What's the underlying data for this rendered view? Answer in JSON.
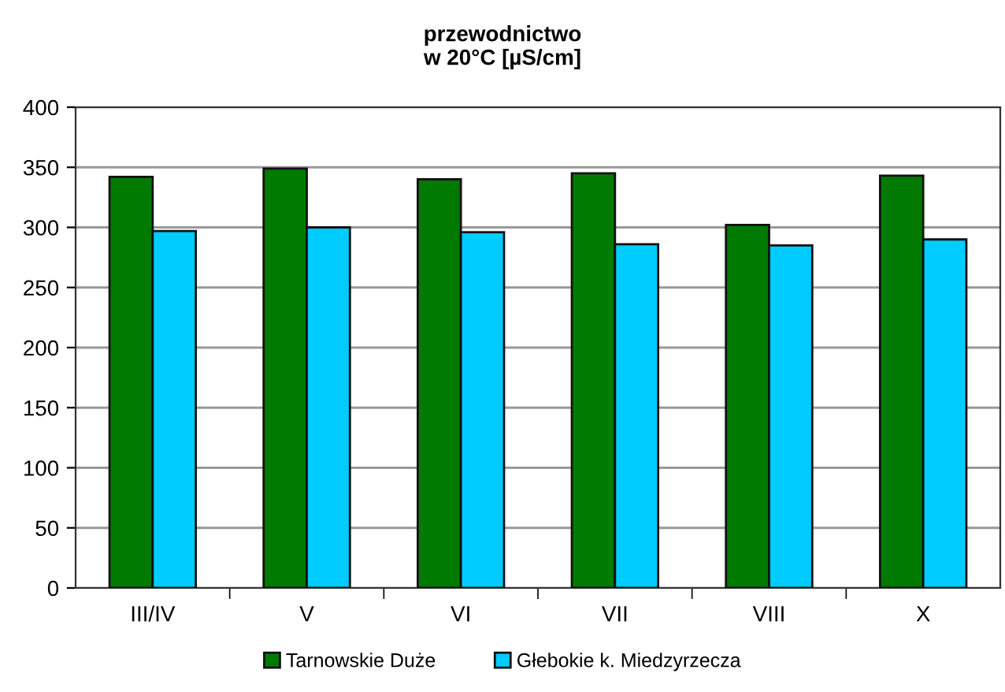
{
  "chart_data": {
    "type": "bar",
    "title": "przewodnictwo\nw 20°C [µS/cm]",
    "categories": [
      "III/IV",
      "V",
      "VI",
      "VII",
      "VIII",
      "X"
    ],
    "series": [
      {
        "name": "Tarnowskie Duże",
        "color": "#007a00",
        "values": [
          342,
          349,
          340,
          345,
          302,
          343
        ]
      },
      {
        "name": "Głebokie k. Miedzyrzecza",
        "color": "#00ccff",
        "values": [
          297,
          300,
          296,
          286,
          285,
          290
        ]
      }
    ],
    "ylim": [
      0,
      400
    ],
    "yticks": [
      0,
      50,
      100,
      150,
      200,
      250,
      300,
      350,
      400
    ],
    "grid": "y",
    "legend": "bottom"
  }
}
